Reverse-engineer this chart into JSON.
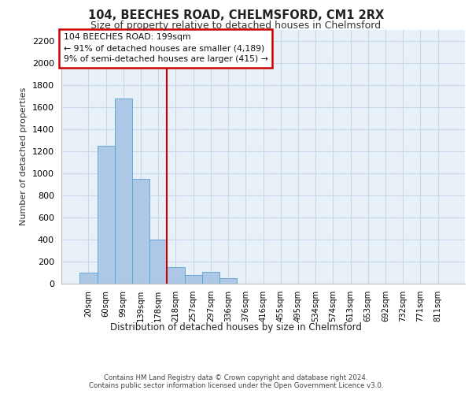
{
  "title1": "104, BEECHES ROAD, CHELMSFORD, CM1 2RX",
  "title2": "Size of property relative to detached houses in Chelmsford",
  "xlabel": "Distribution of detached houses by size in Chelmsford",
  "ylabel": "Number of detached properties",
  "footer1": "Contains HM Land Registry data © Crown copyright and database right 2024.",
  "footer2": "Contains public sector information licensed under the Open Government Licence v3.0.",
  "annotation_line1": "104 BEECHES ROAD: 199sqm",
  "annotation_line2": "← 91% of detached houses are smaller (4,189)",
  "annotation_line3": "9% of semi-detached houses are larger (415) →",
  "bar_labels": [
    "20sqm",
    "60sqm",
    "99sqm",
    "139sqm",
    "178sqm",
    "218sqm",
    "257sqm",
    "297sqm",
    "336sqm",
    "376sqm",
    "416sqm",
    "455sqm",
    "495sqm",
    "534sqm",
    "574sqm",
    "613sqm",
    "653sqm",
    "692sqm",
    "732sqm",
    "771sqm",
    "811sqm"
  ],
  "bar_values": [
    100,
    1250,
    1675,
    950,
    400,
    150,
    75,
    110,
    50,
    0,
    0,
    0,
    0,
    0,
    0,
    0,
    0,
    0,
    0,
    0,
    0
  ],
  "bar_color": "#adc8e6",
  "bar_edge_color": "#5a9fd4",
  "property_line_color": "#cc0000",
  "annotation_box_color": "#cc0000",
  "grid_color": "#c8d8e8",
  "background_color": "#e8f0f8",
  "ylim": [
    0,
    2300
  ],
  "yticks": [
    0,
    200,
    400,
    600,
    800,
    1000,
    1200,
    1400,
    1600,
    1800,
    2000,
    2200
  ]
}
